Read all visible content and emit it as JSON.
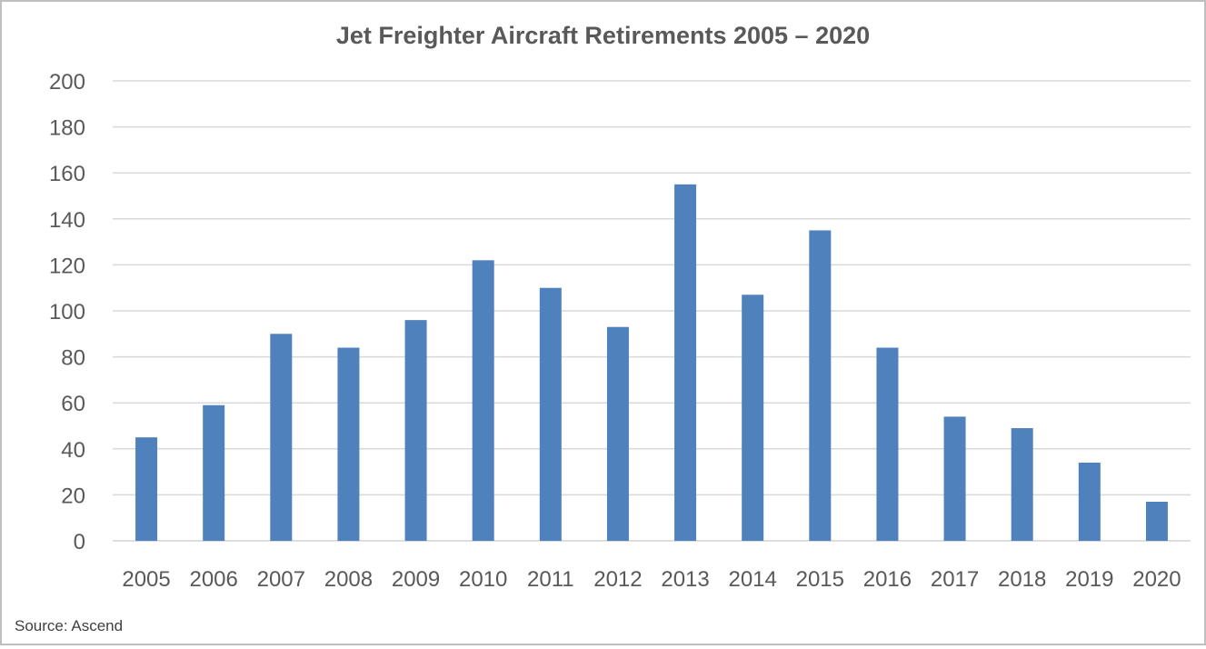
{
  "chart_data": {
    "type": "bar",
    "title": "Jet Freighter Aircraft Retirements 2005 – 2020",
    "categories": [
      "2005",
      "2006",
      "2007",
      "2008",
      "2009",
      "2010",
      "2011",
      "2012",
      "2013",
      "2014",
      "2015",
      "2016",
      "2017",
      "2018",
      "2019",
      "2020"
    ],
    "values": [
      45,
      59,
      90,
      84,
      96,
      122,
      110,
      93,
      155,
      107,
      135,
      84,
      54,
      49,
      34,
      17
    ],
    "ylim": [
      0,
      200
    ],
    "yticks": [
      "0",
      "20",
      "40",
      "60",
      "80",
      "100",
      "120",
      "140",
      "160",
      "180",
      "200"
    ],
    "grid": true,
    "legend": "none",
    "bar_color": "#4f81bd",
    "grid_color": "#d9d9d9"
  },
  "source": "Source: Ascend"
}
